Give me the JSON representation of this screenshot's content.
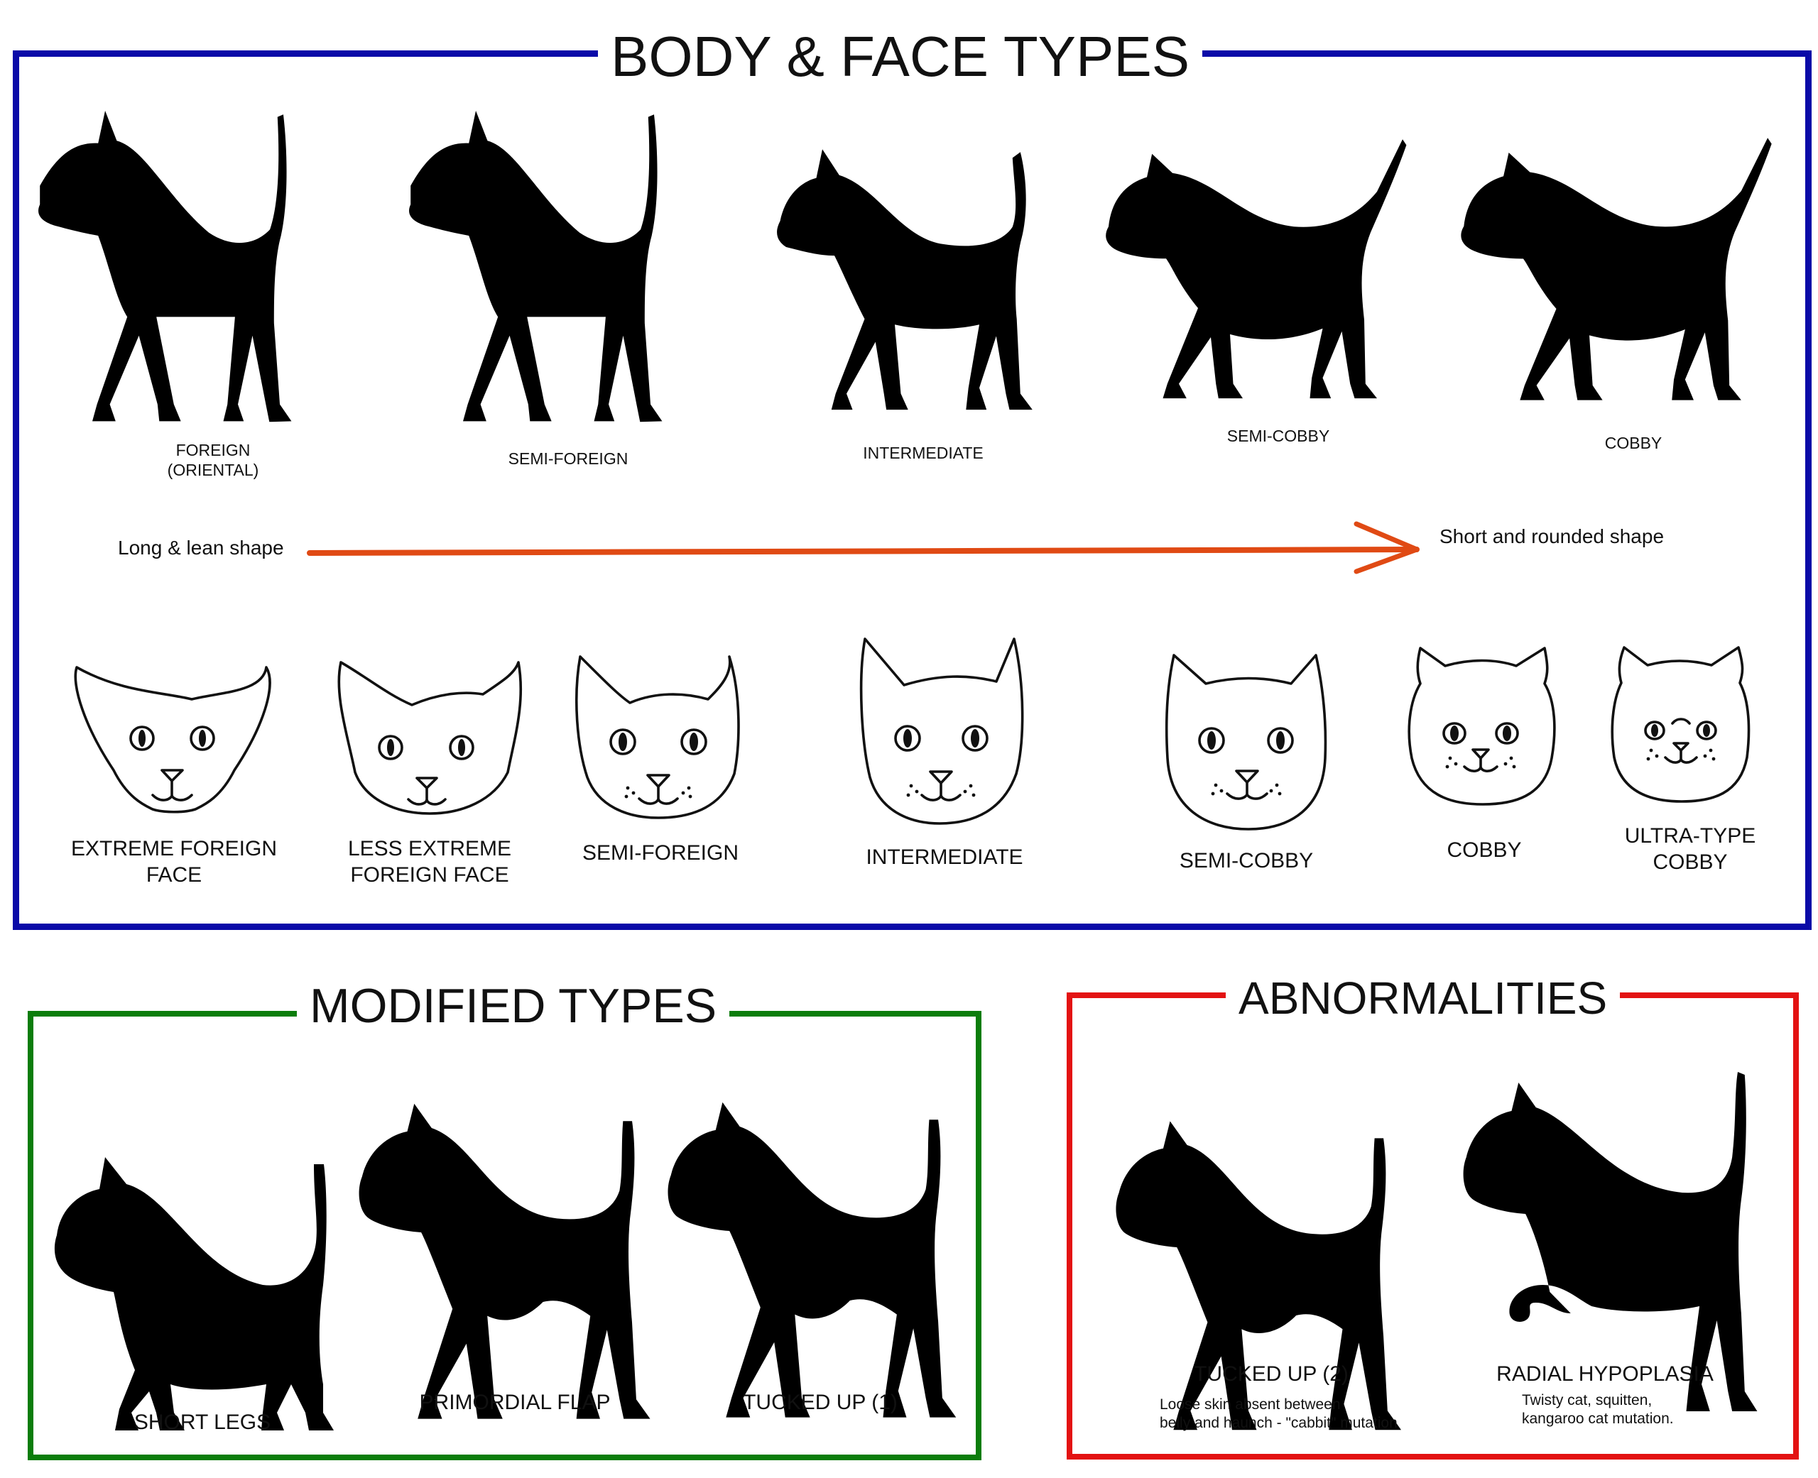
{
  "colors": {
    "body_frame": "#0a0aa8",
    "modified_frame": "#0b7d0b",
    "abnormal_frame": "#e31212",
    "arrow": "#e04a14"
  },
  "sections": {
    "body_face": {
      "title": "BODY & FACE TYPES",
      "body_types": [
        {
          "line1": "FOREIGN",
          "line2": "(ORIENTAL)"
        },
        {
          "line1": "SEMI-FOREIGN"
        },
        {
          "line1": "INTERMEDIATE"
        },
        {
          "line1": "SEMI-COBBY"
        },
        {
          "line1": "COBBY"
        }
      ],
      "arrow": {
        "left_label": "Long & lean shape",
        "right_label": "Short and rounded shape"
      },
      "face_types": [
        {
          "line1": "EXTREME FOREIGN",
          "line2": "FACE"
        },
        {
          "line1": "LESS EXTREME",
          "line2": "FOREIGN FACE"
        },
        {
          "line1": "SEMI-FOREIGN"
        },
        {
          "line1": "INTERMEDIATE"
        },
        {
          "line1": "SEMI-COBBY"
        },
        {
          "line1": "COBBY"
        },
        {
          "line1": "ULTRA-TYPE",
          "line2": "COBBY"
        }
      ]
    },
    "modified": {
      "title": "MODIFIED TYPES",
      "items": [
        {
          "label": "SHORT LEGS"
        },
        {
          "label": "PRIMORDIAL FLAP"
        },
        {
          "label": "TUCKED UP (1)"
        }
      ]
    },
    "abnormalities": {
      "title": "ABNORMALITIES",
      "items": [
        {
          "label": "TUCKED UP (2)",
          "note1": "Loose skin absent between",
          "note2": "belly and haunch - \"cabbit\" mutation"
        },
        {
          "label": "RADIAL HYPOPLASIA",
          "note1": "Twisty cat, squitten,",
          "note2": "kangaroo cat mutation."
        }
      ]
    }
  }
}
